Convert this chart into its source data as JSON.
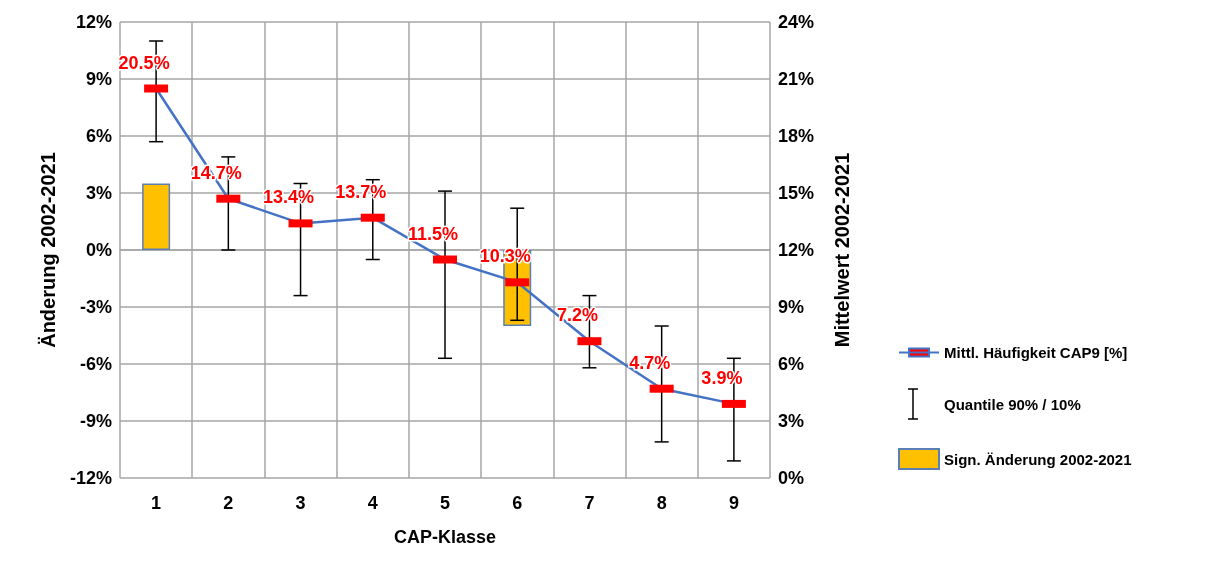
{
  "chart_data": {
    "type": "line",
    "xlabel": "CAP-Klasse",
    "ylabel": "Änderung 2002-2021",
    "y2label": "Mittelwert 2002-2021",
    "categories": [
      "1",
      "2",
      "3",
      "4",
      "5",
      "6",
      "7",
      "8",
      "9"
    ],
    "series": [
      {
        "type": "bar",
        "name": "Sign. Änderung 2002-2021",
        "color": "#ffc000",
        "axis": "y",
        "values": [
          3.5,
          null,
          null,
          null,
          null,
          -4.0,
          null,
          null,
          null
        ]
      },
      {
        "name": "Mittl. Häufigkeit CAP9 [%]",
        "color": "#4472c4",
        "axis": "y2",
        "marker": "square",
        "colors": [
          "#ff0000",
          "#ff0000",
          "#ff0000",
          "#ff0000",
          "#ff0000",
          "#ff0000",
          "#ff0000",
          "#ff0000",
          "#ff0000"
        ],
        "values": [
          20.5,
          14.7,
          13.4,
          13.7,
          11.5,
          10.3,
          7.2,
          4.7,
          3.9
        ],
        "value_labels": [
          "20.5%",
          "14.7%",
          "13.4%",
          "13.7%",
          "11.5%",
          "10.3%",
          "7.2%",
          "4.7%",
          "3.9%"
        ],
        "errors": [
          [
            17.7,
            23.0
          ],
          [
            12.0,
            16.9
          ],
          [
            9.6,
            15.5
          ],
          [
            11.5,
            15.7
          ],
          [
            6.3,
            15.1
          ],
          [
            8.3,
            14.2
          ],
          [
            5.8,
            9.6
          ],
          [
            1.9,
            8.0
          ],
          [
            0.9,
            6.3
          ]
        ]
      }
    ],
    "annotations": [
      "Quantile 90% / 10%"
    ],
    "ylim": [
      -12,
      12
    ],
    "yticks": [
      {
        "value": -12,
        "label": "-12%"
      },
      {
        "value": -9,
        "label": "-9%"
      },
      {
        "value": -6,
        "label": "-6%"
      },
      {
        "value": -3,
        "label": "-3%"
      },
      {
        "value": 0,
        "label": "0%"
      },
      {
        "value": 3,
        "label": "3%"
      },
      {
        "value": 6,
        "label": "6%"
      },
      {
        "value": 9,
        "label": "9%"
      },
      {
        "value": 12,
        "label": "12%"
      }
    ],
    "y2lim": [
      0,
      24
    ],
    "y2ticks": [
      {
        "value": 0,
        "label": "0%"
      },
      {
        "value": 3,
        "label": "3%"
      },
      {
        "value": 6,
        "label": "6%"
      },
      {
        "value": 9,
        "label": "9%"
      },
      {
        "value": 12,
        "label": "12%"
      },
      {
        "value": 15,
        "label": "15%"
      },
      {
        "value": 18,
        "label": "18%"
      },
      {
        "value": 21,
        "label": "21%"
      },
      {
        "value": 24,
        "label": "24%"
      }
    ],
    "grid": true,
    "legend": "right"
  }
}
